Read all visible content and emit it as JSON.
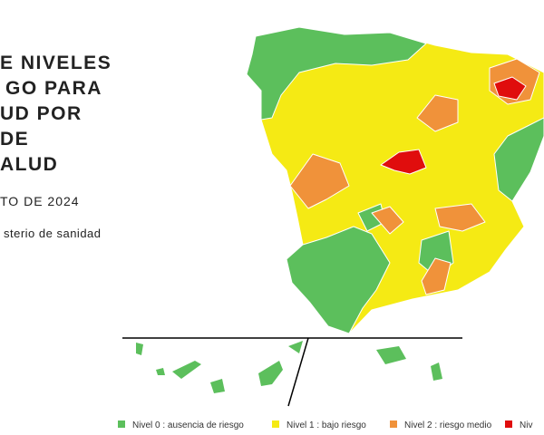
{
  "header": {
    "title_lines": [
      "E NIVELES",
      "GO PARA",
      "UD POR",
      "DE",
      "ALUD"
    ],
    "date": "TO DE 2024",
    "source": "sterio de sanidad"
  },
  "legend": [
    {
      "label": "Nivel 0 : ausencia de riesgo",
      "color": "#5cbf5c"
    },
    {
      "label": "Nivel 1 : bajo riesgo",
      "color": "#f5ea14"
    },
    {
      "label": "Nivel 2 : riesgo medio",
      "color": "#f0923a"
    },
    {
      "label": "Niv",
      "color": "#e00d0d"
    }
  ]
}
